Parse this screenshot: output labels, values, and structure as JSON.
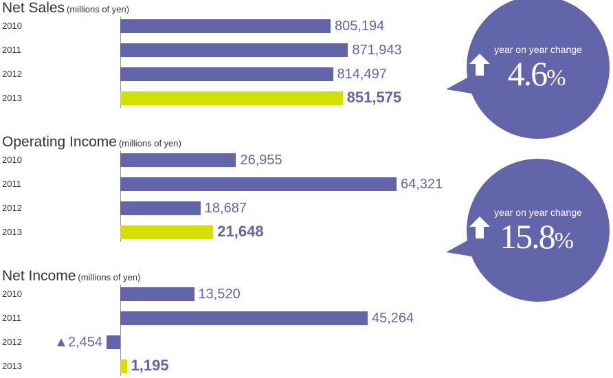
{
  "colors": {
    "bar": "#6365ab",
    "bar_latest": "#d5e000",
    "value_text": "#6365ab",
    "bubble": "#6365ab"
  },
  "chart_data": [
    {
      "type": "bar",
      "orientation": "horizontal",
      "title": "Net Sales",
      "unit": "(millions of yen)",
      "categories": [
        "2010",
        "2011",
        "2012",
        "2013"
      ],
      "values": [
        805194,
        871943,
        814497,
        851575
      ],
      "value_labels": [
        "805,194",
        "871,943",
        "814,497",
        "851,575"
      ],
      "highlight_index": 3,
      "callout": {
        "label": "year on year change",
        "value": "4.6",
        "percent": "%",
        "direction": "up-arrow-icon"
      }
    },
    {
      "type": "bar",
      "orientation": "horizontal",
      "title": "Operating Income",
      "unit": "(millions of yen)",
      "categories": [
        "2010",
        "2011",
        "2012",
        "2013"
      ],
      "values": [
        26955,
        64321,
        18687,
        21648
      ],
      "value_labels": [
        "26,955",
        "64,321",
        "18,687",
        "21,648"
      ],
      "highlight_index": 3,
      "callout": {
        "label": "year on year change",
        "value": "15.8",
        "percent": "%",
        "direction": "up-arrow-icon"
      }
    },
    {
      "type": "bar",
      "orientation": "horizontal",
      "title": "Net Income",
      "unit": "(millions of yen)",
      "categories": [
        "2010",
        "2011",
        "2012",
        "2013"
      ],
      "values": [
        13520,
        45264,
        -2454,
        1195
      ],
      "value_labels": [
        "13,520",
        "45,264",
        "▲2,454",
        "1,195"
      ],
      "highlight_index": 3
    }
  ]
}
